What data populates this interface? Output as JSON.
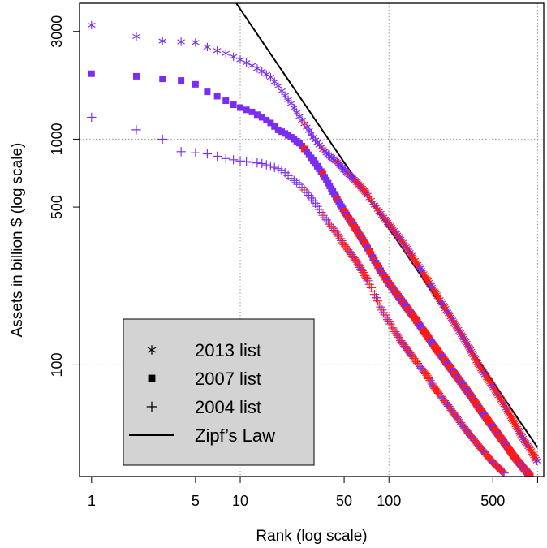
{
  "chart_data": {
    "type": "scatter",
    "title": "",
    "xlabel": "Rank (log scale)",
    "ylabel": "Assets in billion $ (log scale)",
    "x_scale": "log",
    "y_scale": "log",
    "xlim": [
      0.83,
      1100
    ],
    "ylim": [
      32,
      4000
    ],
    "grid": true,
    "x_ticks": [
      {
        "value": 1,
        "label": "1"
      },
      {
        "value": 5,
        "label": "5"
      },
      {
        "value": 10,
        "label": "10"
      },
      {
        "value": 50,
        "label": "50"
      },
      {
        "value": 100,
        "label": "100"
      },
      {
        "value": 500,
        "label": "500"
      }
    ],
    "x_minor_ticks": [
      1,
      5,
      10,
      50,
      100,
      500,
      1000
    ],
    "x_grid": [
      10,
      100,
      1000
    ],
    "y_ticks": [
      {
        "value": 100,
        "label": "100"
      },
      {
        "value": 500,
        "label": "500"
      },
      {
        "value": 1000,
        "label": "1000"
      },
      {
        "value": 3000,
        "label": "3000"
      }
    ],
    "y_grid": [
      100,
      1000
    ],
    "legend_position": "bottom-left",
    "series": [
      {
        "name": "2013 list",
        "marker": "asterisk",
        "points": [
          [
            1,
            3200
          ],
          [
            2,
            2850
          ],
          [
            3,
            2720
          ],
          [
            4,
            2700
          ],
          [
            5,
            2680
          ],
          [
            6,
            2560
          ],
          [
            7,
            2470
          ],
          [
            8,
            2400
          ],
          [
            9,
            2320
          ],
          [
            10,
            2250
          ],
          [
            12,
            2120
          ],
          [
            14,
            2000
          ],
          [
            16,
            1880
          ],
          [
            18,
            1720
          ],
          [
            20,
            1560
          ],
          [
            22,
            1440
          ],
          [
            25,
            1260
          ],
          [
            28,
            1130
          ],
          [
            32,
            990
          ],
          [
            36,
            900
          ],
          [
            40,
            840
          ],
          [
            45,
            790
          ],
          [
            50,
            730
          ],
          [
            60,
            650
          ],
          [
            70,
            580
          ],
          [
            80,
            510
          ],
          [
            90,
            460
          ],
          [
            100,
            420
          ],
          [
            120,
            360
          ],
          [
            150,
            290
          ],
          [
            180,
            240
          ],
          [
            200,
            215
          ],
          [
            250,
            170
          ],
          [
            300,
            140
          ],
          [
            350,
            118
          ],
          [
            400,
            100
          ],
          [
            500,
            80
          ],
          [
            600,
            66
          ],
          [
            700,
            55
          ],
          [
            800,
            47
          ],
          [
            900,
            42
          ],
          [
            1000,
            37
          ]
        ],
        "highlight_from_rank": 60
      },
      {
        "name": "2007 list",
        "marker": "square",
        "points": [
          [
            1,
            1950
          ],
          [
            2,
            1900
          ],
          [
            3,
            1850
          ],
          [
            4,
            1820
          ],
          [
            5,
            1750
          ],
          [
            6,
            1620
          ],
          [
            7,
            1550
          ],
          [
            8,
            1480
          ],
          [
            9,
            1420
          ],
          [
            10,
            1380
          ],
          [
            12,
            1320
          ],
          [
            14,
            1250
          ],
          [
            16,
            1180
          ],
          [
            18,
            1100
          ],
          [
            20,
            1060
          ],
          [
            22,
            1020
          ],
          [
            25,
            960
          ],
          [
            28,
            880
          ],
          [
            32,
            780
          ],
          [
            36,
            700
          ],
          [
            40,
            620
          ],
          [
            45,
            540
          ],
          [
            50,
            480
          ],
          [
            60,
            400
          ],
          [
            70,
            340
          ],
          [
            80,
            290
          ],
          [
            90,
            255
          ],
          [
            100,
            230
          ],
          [
            120,
            195
          ],
          [
            150,
            160
          ],
          [
            180,
            135
          ],
          [
            200,
            122
          ],
          [
            250,
            100
          ],
          [
            300,
            85
          ],
          [
            350,
            74
          ],
          [
            400,
            65
          ],
          [
            500,
            53
          ],
          [
            600,
            45
          ],
          [
            700,
            39
          ],
          [
            800,
            35
          ],
          [
            900,
            32
          ]
        ],
        "highlight_from_rank": 50
      },
      {
        "name": "2004 list",
        "marker": "plus",
        "points": [
          [
            1,
            1250
          ],
          [
            2,
            1100
          ],
          [
            3,
            1000
          ],
          [
            4,
            880
          ],
          [
            5,
            870
          ],
          [
            6,
            860
          ],
          [
            7,
            840
          ],
          [
            8,
            820
          ],
          [
            9,
            810
          ],
          [
            10,
            800
          ],
          [
            12,
            790
          ],
          [
            14,
            780
          ],
          [
            16,
            760
          ],
          [
            18,
            740
          ],
          [
            20,
            710
          ],
          [
            22,
            670
          ],
          [
            25,
            630
          ],
          [
            28,
            580
          ],
          [
            32,
            520
          ],
          [
            36,
            460
          ],
          [
            40,
            420
          ],
          [
            45,
            380
          ],
          [
            50,
            340
          ],
          [
            60,
            290
          ],
          [
            70,
            245
          ],
          [
            80,
            205
          ],
          [
            90,
            175
          ],
          [
            100,
            155
          ],
          [
            120,
            128
          ],
          [
            150,
            105
          ],
          [
            180,
            90
          ],
          [
            200,
            80
          ],
          [
            250,
            66
          ],
          [
            300,
            56
          ],
          [
            350,
            49
          ],
          [
            400,
            44
          ],
          [
            500,
            37
          ],
          [
            600,
            33
          ]
        ],
        "highlight_from_rank": 40
      },
      {
        "name": "Zipf's Law",
        "marker": "line",
        "points": [
          [
            9.4,
            4000
          ],
          [
            1000,
            43
          ]
        ]
      }
    ],
    "legend": [
      {
        "marker": "asterisk",
        "label": "2013 list"
      },
      {
        "marker": "square",
        "label": "2007 list"
      },
      {
        "marker": "plus",
        "label": "2004 list"
      },
      {
        "marker": "line",
        "label": "Zipf’s Law"
      }
    ],
    "colors": {
      "primary": "#7a2cf0",
      "secondary": "#ff1a1a",
      "zipf": "#000000",
      "grid": "#9a9a9a",
      "legend_bg": "#d3d3d3"
    }
  }
}
